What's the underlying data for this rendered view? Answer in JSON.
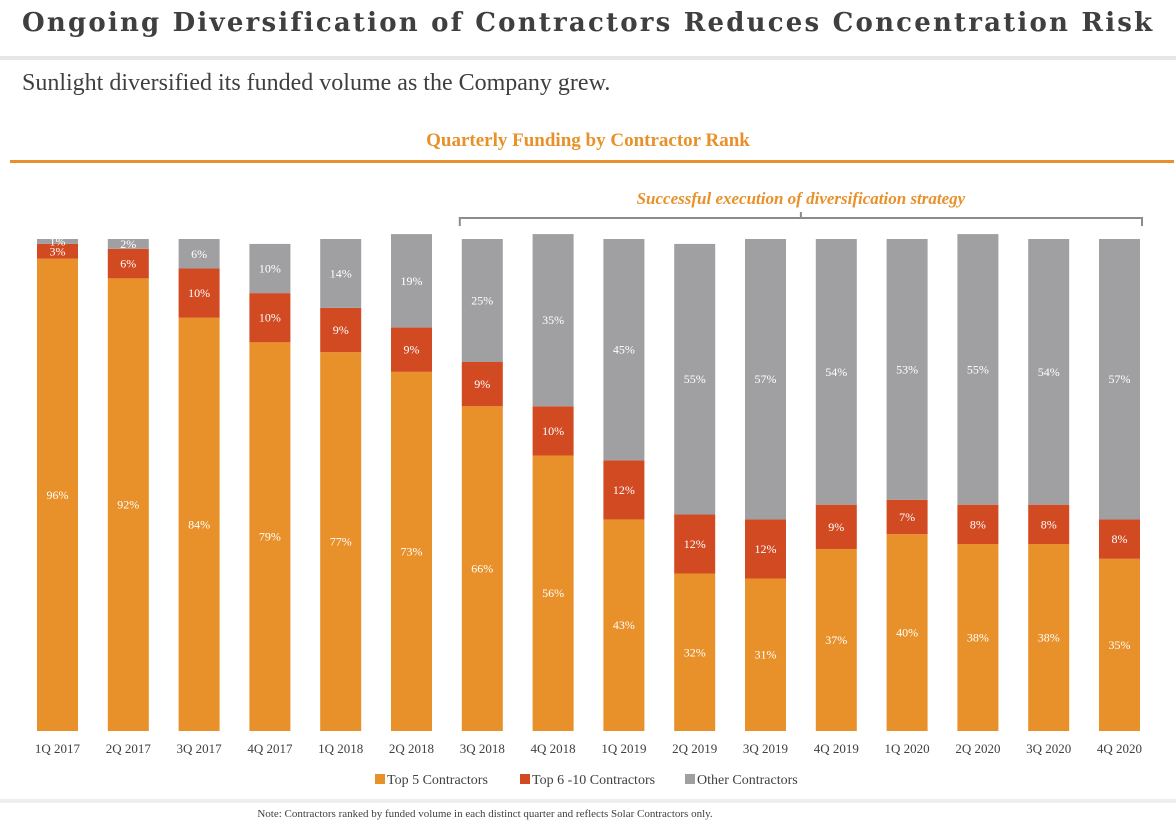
{
  "header": {
    "title": "Ongoing Diversification of Contractors Reduces Concentration Risk",
    "subtitle": "Sunlight diversified its funded volume as the Company grew."
  },
  "colors": {
    "top5": "#e8912a",
    "top6_10": "#d24a22",
    "other": "#a0a0a2",
    "accent": "#e8912a"
  },
  "chart_data": {
    "type": "bar",
    "stacked": true,
    "title": "Quarterly Funding by Contractor Rank",
    "categories": [
      "1Q 2017",
      "2Q 2017",
      "3Q 2017",
      "4Q 2017",
      "1Q 2018",
      "2Q 2018",
      "3Q 2018",
      "4Q 2018",
      "1Q 2019",
      "2Q 2019",
      "3Q 2019",
      "4Q 2019",
      "1Q 2020",
      "2Q 2020",
      "3Q 2020",
      "4Q 2020"
    ],
    "series": [
      {
        "name": "Top 5 Contractors",
        "values": [
          96,
          92,
          84,
          79,
          77,
          73,
          66,
          56,
          43,
          32,
          31,
          37,
          40,
          38,
          38,
          35
        ]
      },
      {
        "name": "Top 6 -10 Contractors",
        "values": [
          3,
          6,
          10,
          10,
          9,
          9,
          9,
          10,
          12,
          12,
          12,
          9,
          7,
          8,
          8,
          8
        ]
      },
      {
        "name": "Other Contractors",
        "values": [
          1,
          2,
          6,
          10,
          14,
          19,
          25,
          35,
          45,
          55,
          57,
          54,
          53,
          55,
          54,
          57
        ]
      }
    ],
    "ylim": [
      0,
      100
    ],
    "legend_position": "bottom",
    "annotation": {
      "text": "Successful execution of diversification strategy",
      "from_category": "3Q 2018",
      "to_category": "4Q 2020"
    }
  },
  "footer": {
    "note": "Note: Contractors ranked by funded volume in each distinct quarter and reflects Solar Contractors only."
  }
}
